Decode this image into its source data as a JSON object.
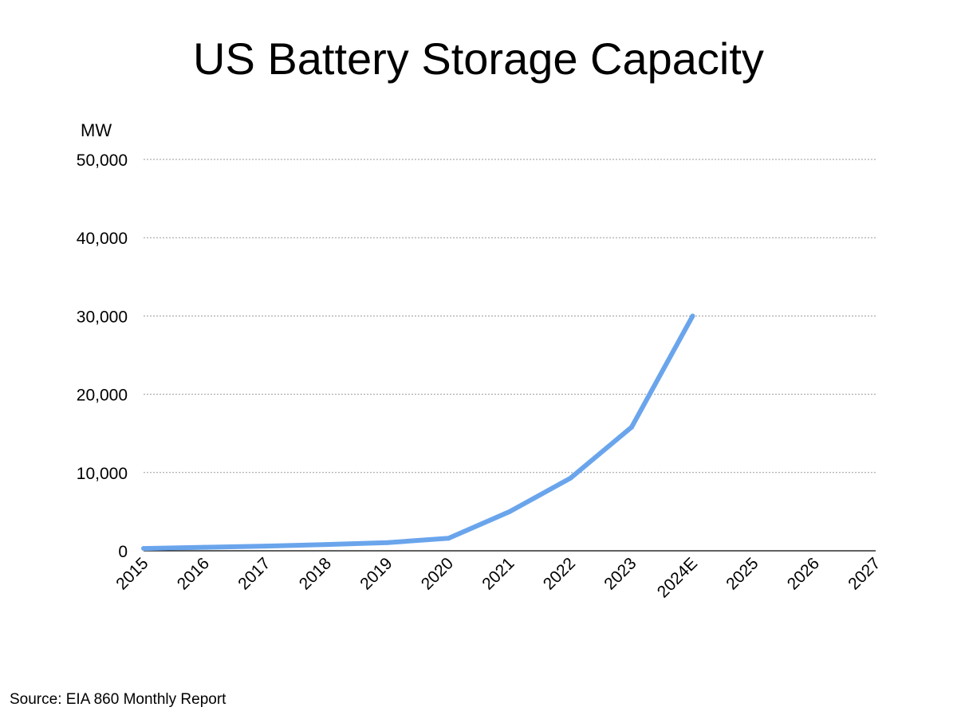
{
  "chart_data": {
    "type": "line",
    "title": "US Battery Storage Capacity",
    "ylabel": "MW",
    "xlabel": "",
    "categories": [
      "2015",
      "2016",
      "2017",
      "2018",
      "2019",
      "2020",
      "2021",
      "2022",
      "2023",
      "2024E",
      "2025",
      "2026",
      "2027"
    ],
    "y_tick_labels": [
      "0",
      "10,000",
      "20,000",
      "30,000",
      "40,000",
      "50,000"
    ],
    "y_ticks": [
      0,
      10000,
      20000,
      30000,
      40000,
      50000
    ],
    "ylim": [
      0,
      50000
    ],
    "grid": true,
    "legend": "none",
    "series": [
      {
        "color": "#6aa5ec",
        "values": [
          300,
          450,
          600,
          800,
          1050,
          1600,
          5000,
          9300,
          15800,
          30000,
          null,
          null,
          null
        ]
      }
    ]
  },
  "source": "Source: EIA 860 Monthly Report"
}
